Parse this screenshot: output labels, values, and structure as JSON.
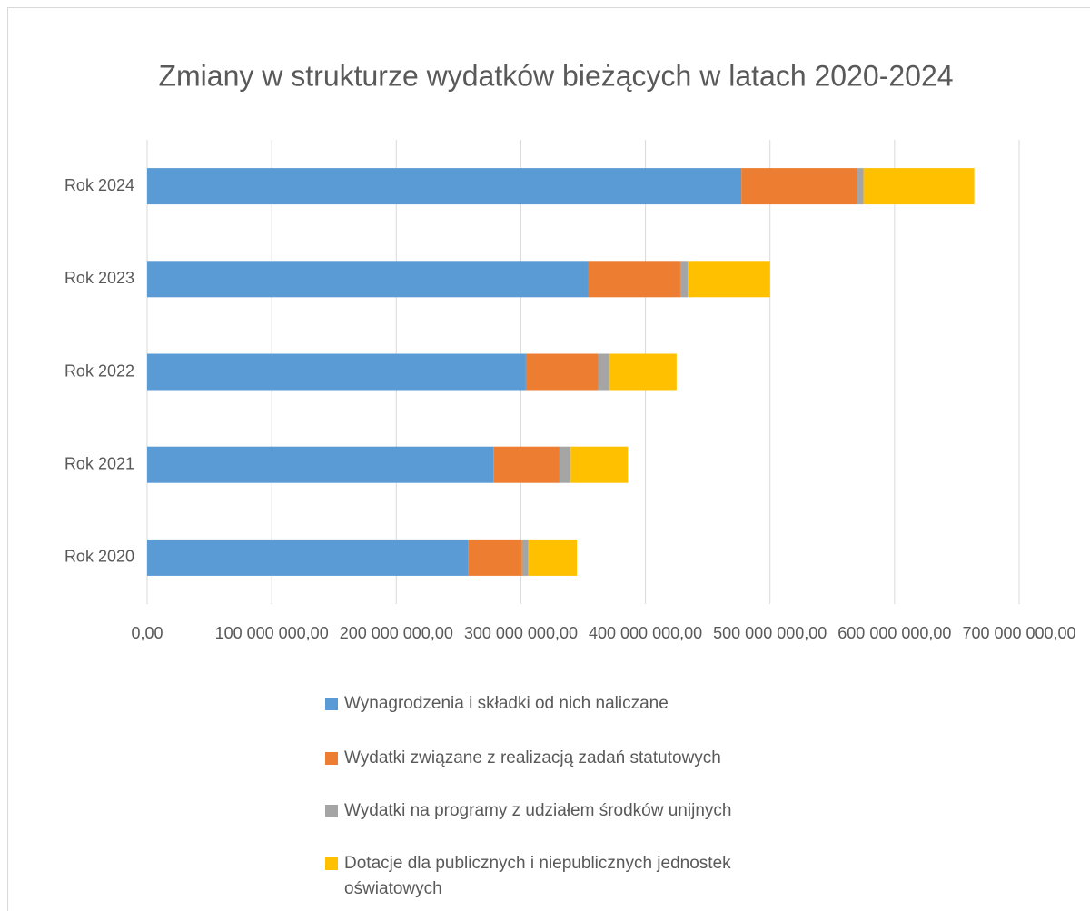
{
  "chart_data": {
    "type": "stacked_barh",
    "title": "Zmiany w strukturze wydatków bieżących w latach 2020-2024",
    "categories": [
      "Rok 2020",
      "Rok 2021",
      "Rok 2022",
      "Rok 2023",
      "Rok 2024"
    ],
    "series": [
      {
        "name": "Wynagrodzenia i składki od nich naliczane",
        "color": "#5b9bd5",
        "values": [
          258000000,
          278000000,
          304000000,
          354000000,
          477000000
        ]
      },
      {
        "name": "Wydatki związane z realizacją zadań statutowych",
        "color": "#ed7d31",
        "values": [
          43000000,
          53000000,
          58000000,
          74000000,
          93000000
        ]
      },
      {
        "name": "Wydatki na programy z udziałem środków unijnych",
        "color": "#a5a5a5",
        "values": [
          5000000,
          9000000,
          9000000,
          6000000,
          5000000
        ]
      },
      {
        "name": "Dotacje dla publicznych i niepublicznych jednostek oświatowych",
        "color": "#ffc000",
        "values": [
          39000000,
          46000000,
          54000000,
          66000000,
          89000000
        ]
      }
    ],
    "xlim": [
      0,
      700000000
    ],
    "xticks": [
      {
        "value": 0,
        "label": "0,00"
      },
      {
        "value": 100000000,
        "label": "100 000 000,00"
      },
      {
        "value": 200000000,
        "label": "200 000 000,00"
      },
      {
        "value": 300000000,
        "label": "300 000 000,00"
      },
      {
        "value": 400000000,
        "label": "400 000 000,00"
      },
      {
        "value": 500000000,
        "label": "500 000 000,00"
      },
      {
        "value": 600000000,
        "label": "600 000 000,00"
      },
      {
        "value": 700000000,
        "label": "700 000 000,00"
      }
    ],
    "grid": true,
    "legend": "bottom"
  }
}
